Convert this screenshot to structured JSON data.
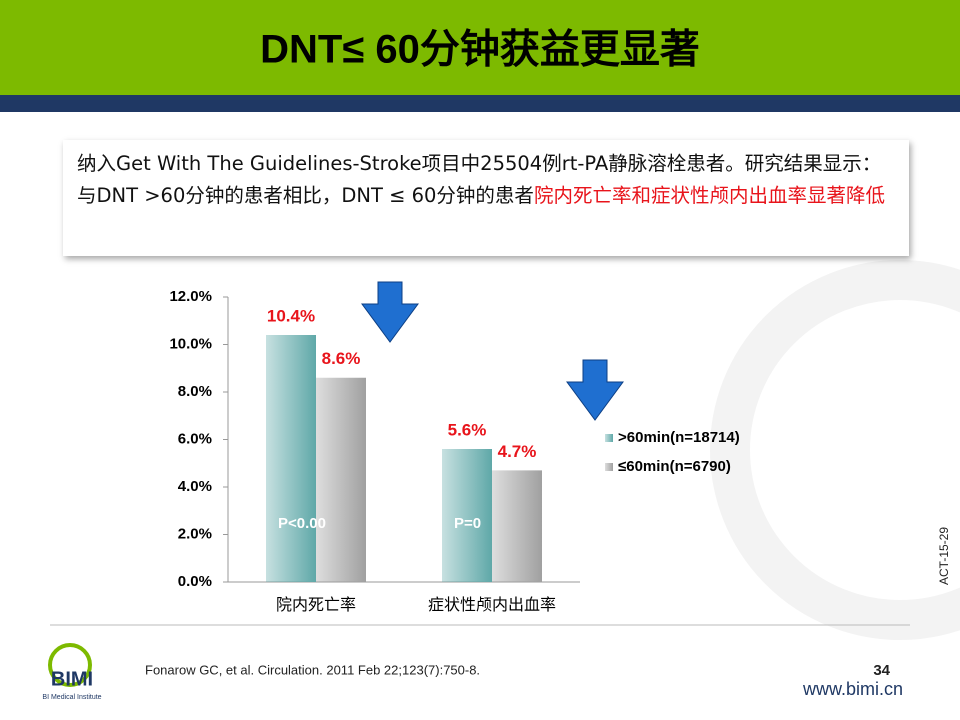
{
  "slide": {
    "title": "DNT≤ 60分钟获益更显著",
    "box_plain": "纳入Get With The Guidelines-Stroke项目中25504例rt-PA静脉溶栓患者。研究结果显示：与DNT >60分钟的患者相比，DNT ≤ 60分钟的患者",
    "box_highlight": "院内死亡率和症状性颅内出血率显著降低",
    "reference": "Fonarow GC, et al. Circulation. 2011 Feb 22;123(7):750-8.",
    "page_number": "34",
    "code": "ACT-15-29",
    "logo": "BIMI",
    "logo_sub": "BI Medical Institute",
    "website": "www.bimi.cn"
  },
  "chart_data": {
    "type": "bar",
    "categories": [
      "院内死亡率",
      "症状性颅内出血率"
    ],
    "series": [
      {
        "name": ">60min(n=18714)",
        "color": "#5fa8a8",
        "values": [
          10.4,
          5.6
        ],
        "value_labels": [
          "10.4%",
          "5.6%"
        ]
      },
      {
        "name": "≤60min(n=6790)",
        "color": "#a0a0a0",
        "values": [
          8.6,
          4.7
        ],
        "value_labels": [
          "8.6%",
          "4.7%"
        ]
      }
    ],
    "annotations": [
      "P<0.00",
      "P=0"
    ],
    "ylim": [
      0,
      12
    ],
    "yticks": [
      {
        "value": 0,
        "label": "0.0%"
      },
      {
        "value": 2,
        "label": "2.0%"
      },
      {
        "value": 4,
        "label": "4.0%"
      },
      {
        "value": 6,
        "label": "6.0%"
      },
      {
        "value": 8,
        "label": "8.0%"
      },
      {
        "value": 10,
        "label": "10.0%"
      },
      {
        "value": 12,
        "label": "12.0%"
      }
    ],
    "value_label_color": "#e8141b"
  }
}
